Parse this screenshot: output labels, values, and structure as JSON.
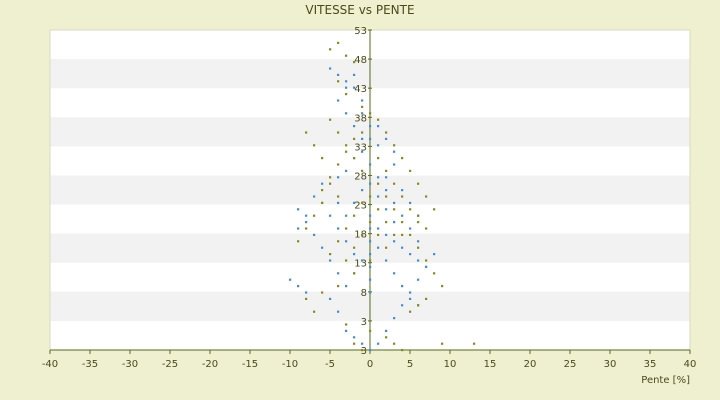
{
  "chart_data": {
    "type": "scatter",
    "title": "VITESSE vs PENTE",
    "xlabel": "Pente [%]",
    "ylabel": "",
    "xlim": [
      -40,
      40
    ],
    "ylim": [
      3,
      53
    ],
    "x_ticks": [
      "-40",
      "-35",
      "-30",
      "-25",
      "-20",
      "-15",
      "-10",
      "-5",
      "0",
      "5",
      "10",
      "15",
      "20",
      "25",
      "30",
      "35",
      "40"
    ],
    "y_ticks": [
      "53",
      "48",
      "43",
      "38",
      "33",
      "28",
      "23",
      "18",
      "13",
      "8",
      "3",
      "3"
    ],
    "grid": "horizontal alternating bands",
    "legend": "none",
    "colors": {
      "background": "#eef0cf",
      "band_light": "#ffffff",
      "band_dark": "#f2f2f2",
      "blue_series": "#3f8fd8",
      "olive_series": "#8a8a1c",
      "axis": "#556b1a"
    },
    "series": [
      {
        "color": "#3f8fd8",
        "points": [
          [
            -5,
            47
          ],
          [
            -4,
            46
          ],
          [
            -3,
            45
          ],
          [
            -2,
            44
          ],
          [
            -1,
            40
          ],
          [
            0,
            38
          ],
          [
            0,
            36
          ],
          [
            1,
            35
          ],
          [
            -2,
            33
          ],
          [
            -3,
            31
          ],
          [
            -4,
            30
          ],
          [
            -6,
            29
          ],
          [
            -7,
            27
          ],
          [
            -8,
            24
          ],
          [
            -9,
            22
          ],
          [
            -10,
            14
          ],
          [
            -9,
            13
          ],
          [
            -8,
            12
          ],
          [
            -5,
            11
          ],
          [
            -4,
            9
          ],
          [
            -3,
            6
          ],
          [
            -2,
            5
          ],
          [
            -1,
            4
          ],
          [
            0,
            3
          ],
          [
            1,
            4
          ],
          [
            2,
            6
          ],
          [
            3,
            8
          ],
          [
            4,
            10
          ],
          [
            5,
            12
          ],
          [
            6,
            14
          ],
          [
            7,
            16
          ],
          [
            8,
            18
          ],
          [
            6,
            20
          ],
          [
            5,
            22
          ],
          [
            4,
            24
          ],
          [
            3,
            26
          ],
          [
            2,
            28
          ],
          [
            1,
            30
          ],
          [
            0,
            32
          ],
          [
            -1,
            34
          ],
          [
            1,
            22
          ],
          [
            2,
            21
          ],
          [
            3,
            20
          ],
          [
            4,
            19
          ],
          [
            5,
            18
          ],
          [
            6,
            17
          ],
          [
            7,
            16
          ],
          [
            -2,
            18
          ],
          [
            -3,
            20
          ],
          [
            -4,
            22
          ],
          [
            -5,
            24
          ],
          [
            -6,
            26
          ],
          [
            -1,
            28
          ],
          [
            0,
            29
          ],
          [
            1,
            27
          ],
          [
            2,
            25
          ],
          [
            3,
            23
          ],
          [
            -2,
            26
          ],
          [
            -3,
            24
          ],
          [
            -4,
            26
          ],
          [
            0,
            24
          ],
          [
            0,
            22
          ],
          [
            0,
            20
          ],
          [
            0,
            18
          ],
          [
            0,
            16
          ],
          [
            0,
            14
          ],
          [
            0,
            12
          ],
          [
            1,
            19
          ],
          [
            2,
            17
          ],
          [
            3,
            15
          ],
          [
            4,
            13
          ],
          [
            5,
            11
          ],
          [
            6,
            10
          ],
          [
            -1,
            17
          ],
          [
            -2,
            15
          ],
          [
            -3,
            13
          ],
          [
            -4,
            15
          ],
          [
            -5,
            17
          ],
          [
            -6,
            19
          ],
          [
            -7,
            21
          ],
          [
            -8,
            23
          ],
          [
            -9,
            25
          ],
          [
            2,
            30
          ],
          [
            3,
            32
          ],
          [
            4,
            28
          ],
          [
            5,
            26
          ],
          [
            6,
            24
          ],
          [
            -1,
            36
          ],
          [
            -2,
            38
          ],
          [
            -3,
            40
          ],
          [
            -4,
            42
          ],
          [
            -3,
            44
          ],
          [
            -2,
            46
          ],
          [
            -1,
            42
          ],
          [
            1,
            38
          ],
          [
            2,
            36
          ],
          [
            3,
            34
          ]
        ]
      },
      {
        "color": "#8a8a1c",
        "points": [
          [
            -5,
            50
          ],
          [
            -4,
            51
          ],
          [
            -3,
            49
          ],
          [
            -2,
            48
          ],
          [
            -4,
            45
          ],
          [
            -3,
            43
          ],
          [
            -1,
            41
          ],
          [
            0,
            40
          ],
          [
            1,
            39
          ],
          [
            2,
            37
          ],
          [
            3,
            35
          ],
          [
            4,
            33
          ],
          [
            5,
            31
          ],
          [
            6,
            29
          ],
          [
            7,
            27
          ],
          [
            8,
            25
          ],
          [
            6,
            23
          ],
          [
            4,
            21
          ],
          [
            2,
            19
          ],
          [
            0,
            17
          ],
          [
            -2,
            15
          ],
          [
            -4,
            13
          ],
          [
            -6,
            12
          ],
          [
            -8,
            11
          ],
          [
            -7,
            9
          ],
          [
            -3,
            7
          ],
          [
            0,
            6
          ],
          [
            2,
            5
          ],
          [
            3,
            4
          ],
          [
            4,
            3
          ],
          [
            9,
            4
          ],
          [
            13,
            4
          ],
          [
            -1,
            3
          ],
          [
            -2,
            4
          ],
          [
            -6,
            28
          ],
          [
            -5,
            30
          ],
          [
            -4,
            32
          ],
          [
            -3,
            34
          ],
          [
            -2,
            36
          ],
          [
            -1,
            37
          ],
          [
            1,
            33
          ],
          [
            2,
            31
          ],
          [
            3,
            29
          ],
          [
            4,
            27
          ],
          [
            5,
            25
          ],
          [
            6,
            24
          ],
          [
            7,
            22
          ],
          [
            -6,
            26
          ],
          [
            -7,
            24
          ],
          [
            -8,
            22
          ],
          [
            -9,
            20
          ],
          [
            -5,
            18
          ],
          [
            -4,
            20
          ],
          [
            -3,
            22
          ],
          [
            -2,
            24
          ],
          [
            -1,
            26
          ],
          [
            0,
            27
          ],
          [
            1,
            29
          ],
          [
            -1,
            31
          ],
          [
            -2,
            33
          ],
          [
            -3,
            35
          ],
          [
            -4,
            37
          ],
          [
            -5,
            39
          ],
          [
            2,
            27
          ],
          [
            3,
            25
          ],
          [
            4,
            23
          ],
          [
            5,
            21
          ],
          [
            6,
            19
          ],
          [
            7,
            17
          ],
          [
            8,
            15
          ],
          [
            9,
            13
          ],
          [
            7,
            11
          ],
          [
            6,
            10
          ],
          [
            5,
            9
          ],
          [
            1,
            21
          ],
          [
            0,
            23
          ],
          [
            -1,
            21
          ],
          [
            -2,
            19
          ],
          [
            -3,
            17
          ],
          [
            -4,
            27
          ],
          [
            -5,
            29
          ],
          [
            1,
            25
          ],
          [
            2,
            23
          ],
          [
            3,
            21
          ],
          [
            -6,
            33
          ],
          [
            -7,
            35
          ],
          [
            -8,
            37
          ]
        ]
      }
    ]
  }
}
